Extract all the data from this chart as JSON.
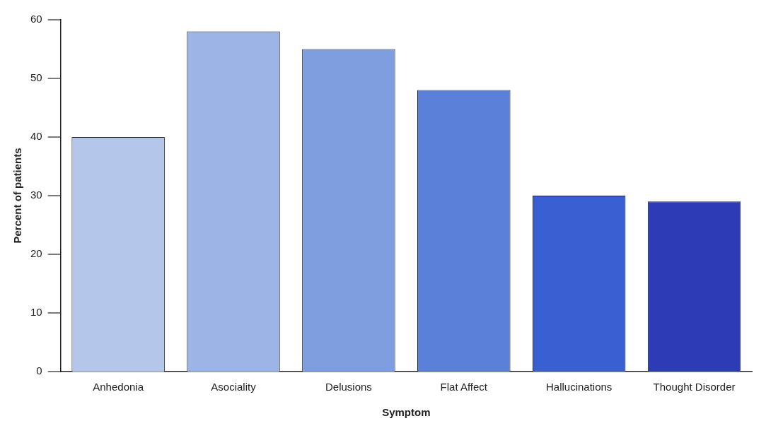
{
  "chart_data": {
    "type": "bar",
    "xlabel": "Symptom",
    "ylabel": "Percent of patients",
    "categories": [
      "Anhedonia",
      "Asociality",
      "Delusions",
      "Flat Affect",
      "Hallucinations",
      "Thought Disorder"
    ],
    "values": [
      40,
      58,
      55,
      48,
      30,
      29
    ],
    "colors": [
      "#b4c6ea",
      "#9db4e6",
      "#7f9ee0",
      "#5a80da",
      "#3a5fd2",
      "#2d3cb6"
    ],
    "ylim": [
      0,
      60
    ],
    "yticks": [
      0,
      10,
      20,
      30,
      40,
      50,
      60
    ],
    "grid": false,
    "legend": false
  }
}
